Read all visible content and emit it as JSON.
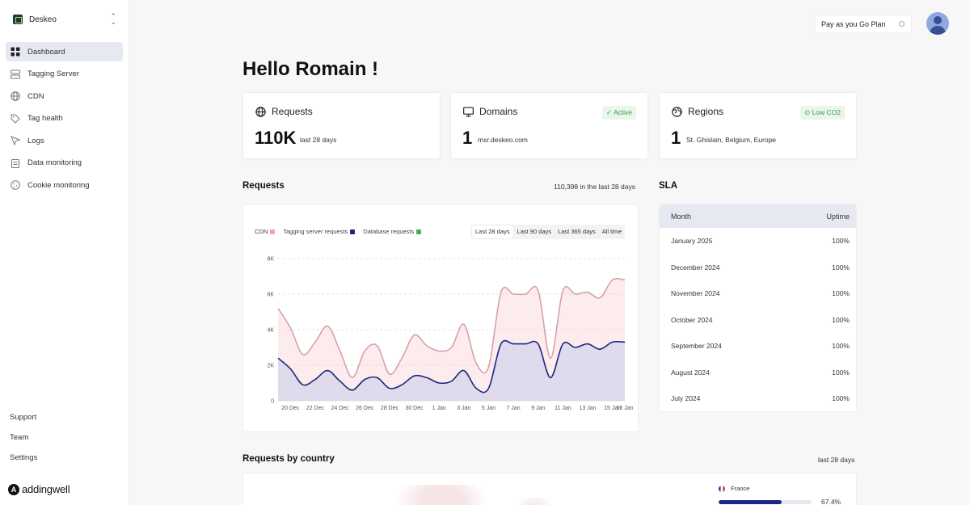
{
  "workspace": {
    "name": "Deskeo"
  },
  "sidebar": {
    "items": [
      {
        "label": "Dashboard",
        "icon": "dashboard-icon",
        "active": true
      },
      {
        "label": "Tagging Server",
        "icon": "server-icon"
      },
      {
        "label": "CDN",
        "icon": "globe-icon"
      },
      {
        "label": "Tag health",
        "icon": "tag-icon"
      },
      {
        "label": "Logs",
        "icon": "cursor-icon"
      },
      {
        "label": "Data monitoring",
        "icon": "clipboard-icon"
      },
      {
        "label": "Cookie monitoring",
        "icon": "cookie-icon"
      }
    ],
    "bottom": {
      "support": "Support",
      "team": "Team",
      "settings": "Settings"
    },
    "brand": "addingwell"
  },
  "header": {
    "plan_label": "Pay as you Go Plan"
  },
  "greeting": "Hello Romain !",
  "kpis": {
    "requests": {
      "title": "Requests",
      "value": "110K",
      "sub": "last 28 days"
    },
    "domains": {
      "title": "Domains",
      "value": "1",
      "sub": "msr.deskeo.com",
      "badge": "Active"
    },
    "regions": {
      "title": "Regions",
      "value": "1",
      "sub": "St. Ghislain, Belgium, Europe",
      "badge": "Low CO2"
    }
  },
  "requests_section": {
    "title": "Requests",
    "summary": "110,398 in the last 28 days",
    "legend": {
      "cdn": "CDN",
      "tagging": "Tagging server requests",
      "database": "Database requests"
    },
    "ranges": {
      "r28": "Last 28 days",
      "r90": "Last 90 days",
      "r365": "Last 365 days",
      "all": "All time"
    }
  },
  "colors": {
    "accent": "#1c2680",
    "cdn": "#f2a5ad",
    "tagging": "#1c2680",
    "database": "#4caf50",
    "badge_green": "#3c9a4a"
  },
  "chart_data": {
    "type": "area",
    "x": [
      "19 Dec",
      "20 Dec",
      "21 Dec",
      "22 Dec",
      "23 Dec",
      "24 Dec",
      "25 Dec",
      "26 Dec",
      "27 Dec",
      "28 Dec",
      "29 Dec",
      "30 Dec",
      "31 Dec",
      "1 Jan",
      "2 Jan",
      "3 Jan",
      "4 Jan",
      "5 Jan",
      "6 Jan",
      "7 Jan",
      "8 Jan",
      "9 Jan",
      "10 Jan",
      "11 Jan",
      "12 Jan",
      "13 Jan",
      "14 Jan",
      "15 Jan",
      "16 Jan"
    ],
    "xticks": [
      "20 Dec",
      "22 Dec",
      "24 Dec",
      "26 Dec",
      "28 Dec",
      "30 Dec",
      "1 Jan",
      "3 Jan",
      "5 Jan",
      "7 Jan",
      "9 Jan",
      "11 Jan",
      "13 Jan",
      "15 Jan",
      "16 Jan"
    ],
    "series": [
      {
        "name": "CDN",
        "values": [
          0,
          0,
          0,
          0,
          0,
          0,
          0,
          0,
          0,
          0,
          0,
          0,
          0,
          0,
          0,
          0,
          0,
          0,
          0,
          0,
          0,
          0,
          0,
          0,
          0,
          0,
          0,
          0,
          0
        ]
      },
      {
        "name": "Tagging server requests",
        "values": [
          5200,
          4100,
          2600,
          3300,
          4200,
          2800,
          1300,
          2800,
          3100,
          1500,
          2400,
          3700,
          3100,
          2800,
          3000,
          4300,
          2100,
          1900,
          6100,
          6000,
          6000,
          6200,
          2400,
          6200,
          6000,
          6100,
          5800,
          6800,
          6800
        ]
      },
      {
        "name": "Database requests",
        "values": [
          2400,
          1800,
          900,
          1200,
          1700,
          1100,
          600,
          1200,
          1300,
          700,
          900,
          1400,
          1300,
          1000,
          1100,
          1700,
          700,
          700,
          3200,
          3200,
          3200,
          3200,
          1300,
          3200,
          3000,
          3200,
          2900,
          3300,
          3300
        ]
      }
    ],
    "yticks": [
      "0",
      "2K",
      "4K",
      "6K",
      "8K"
    ],
    "ylim": [
      0,
      8000
    ],
    "grid": true,
    "legend_position": "top-left"
  },
  "sla": {
    "title": "SLA",
    "headers": {
      "month": "Month",
      "uptime": "Uptime"
    },
    "rows": [
      {
        "month": "January 2025",
        "uptime": "100%"
      },
      {
        "month": "December 2024",
        "uptime": "100%"
      },
      {
        "month": "November 2024",
        "uptime": "100%"
      },
      {
        "month": "October 2024",
        "uptime": "100%"
      },
      {
        "month": "September 2024",
        "uptime": "100%"
      },
      {
        "month": "August 2024",
        "uptime": "100%"
      },
      {
        "month": "July 2024",
        "uptime": "100%"
      }
    ]
  },
  "country_section": {
    "title": "Requests by country",
    "meta": "last 28 days",
    "rows": [
      {
        "country": "France",
        "share": "67.4%",
        "fraction": 0.674
      }
    ]
  }
}
